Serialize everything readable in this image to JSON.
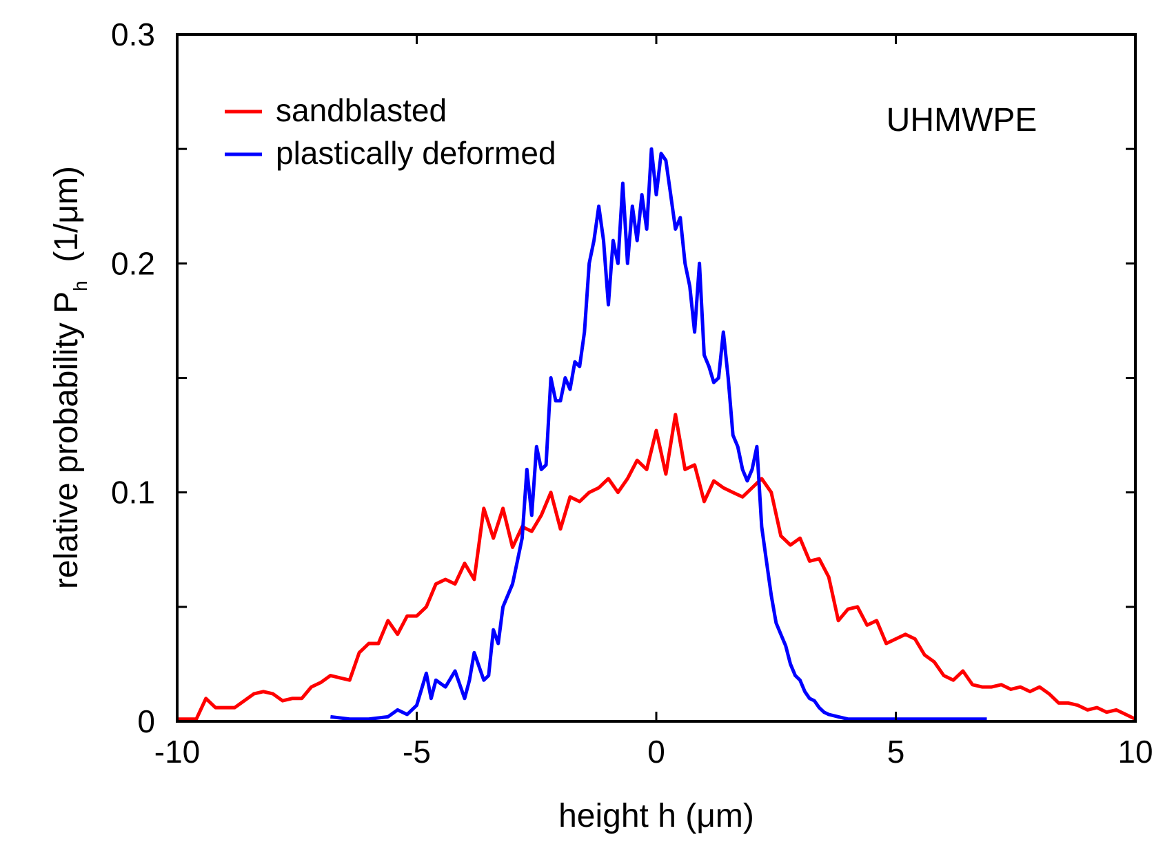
{
  "chart_data": {
    "type": "line",
    "title": "",
    "annotation": "UHMWPE",
    "xlabel": "height h  (μm)",
    "ylabel": {
      "prefix": "relative probability P",
      "subscript": "h",
      "suffix": "  (1/μm)"
    },
    "xlim": [
      -10,
      10
    ],
    "ylim": [
      0,
      0.3
    ],
    "xticks": [
      -10,
      -5,
      0,
      5,
      10
    ],
    "xtick_labels": [
      "-10",
      "-5",
      "0",
      "5",
      "10"
    ],
    "yticks": [
      0,
      0.1,
      0.2,
      0.3
    ],
    "ytick_labels": [
      "0",
      "0.1",
      "0.2",
      "0.3"
    ],
    "yminor_ticks": [
      0.05,
      0.15,
      0.25
    ],
    "grid": false,
    "legend_position": "top-left",
    "series": [
      {
        "name": "sandblasted",
        "color": "#ff0000",
        "x": [
          -10,
          -9.6,
          -9.4,
          -9.2,
          -9.0,
          -8.8,
          -8.6,
          -8.4,
          -8.2,
          -8.0,
          -7.8,
          -7.6,
          -7.4,
          -7.2,
          -7.0,
          -6.8,
          -6.6,
          -6.4,
          -6.2,
          -6.0,
          -5.8,
          -5.6,
          -5.4,
          -5.2,
          -5.0,
          -4.8,
          -4.6,
          -4.4,
          -4.2,
          -4.0,
          -3.8,
          -3.6,
          -3.4,
          -3.2,
          -3.0,
          -2.8,
          -2.6,
          -2.4,
          -2.2,
          -2.0,
          -1.8,
          -1.6,
          -1.4,
          -1.2,
          -1.0,
          -0.8,
          -0.6,
          -0.4,
          -0.2,
          0.0,
          0.2,
          0.4,
          0.6,
          0.8,
          1.0,
          1.2,
          1.4,
          1.6,
          1.8,
          2.0,
          2.2,
          2.4,
          2.6,
          2.8,
          3.0,
          3.2,
          3.4,
          3.6,
          3.8,
          4.0,
          4.2,
          4.4,
          4.6,
          4.8,
          5.0,
          5.2,
          5.4,
          5.6,
          5.8,
          6.0,
          6.2,
          6.4,
          6.6,
          6.8,
          7.0,
          7.2,
          7.4,
          7.6,
          7.8,
          8.0,
          8.2,
          8.4,
          8.6,
          8.8,
          9.0,
          9.2,
          9.4,
          9.6,
          9.8,
          10.0
        ],
        "values": [
          0.001,
          0.001,
          0.01,
          0.006,
          0.006,
          0.006,
          0.009,
          0.012,
          0.013,
          0.012,
          0.009,
          0.01,
          0.01,
          0.015,
          0.017,
          0.02,
          0.019,
          0.018,
          0.03,
          0.034,
          0.034,
          0.044,
          0.038,
          0.046,
          0.046,
          0.05,
          0.06,
          0.062,
          0.06,
          0.069,
          0.062,
          0.093,
          0.08,
          0.093,
          0.076,
          0.085,
          0.083,
          0.09,
          0.1,
          0.084,
          0.098,
          0.096,
          0.1,
          0.102,
          0.106,
          0.1,
          0.106,
          0.114,
          0.11,
          0.127,
          0.108,
          0.134,
          0.11,
          0.112,
          0.096,
          0.105,
          0.102,
          0.1,
          0.098,
          0.102,
          0.106,
          0.1,
          0.081,
          0.077,
          0.08,
          0.07,
          0.071,
          0.063,
          0.044,
          0.049,
          0.05,
          0.042,
          0.044,
          0.034,
          0.036,
          0.038,
          0.036,
          0.029,
          0.026,
          0.02,
          0.018,
          0.022,
          0.016,
          0.015,
          0.015,
          0.016,
          0.014,
          0.015,
          0.013,
          0.015,
          0.012,
          0.008,
          0.008,
          0.007,
          0.005,
          0.006,
          0.004,
          0.005,
          0.003,
          0.001
        ]
      },
      {
        "name": "plastically deformed",
        "color": "#0000ff",
        "x": [
          -6.8,
          -6.4,
          -6.0,
          -5.6,
          -5.4,
          -5.2,
          -5.0,
          -4.8,
          -4.7,
          -4.6,
          -4.4,
          -4.2,
          -4.0,
          -3.9,
          -3.8,
          -3.6,
          -3.5,
          -3.4,
          -3.3,
          -3.2,
          -3.0,
          -2.9,
          -2.8,
          -2.7,
          -2.6,
          -2.5,
          -2.4,
          -2.3,
          -2.2,
          -2.1,
          -2.0,
          -1.9,
          -1.8,
          -1.7,
          -1.6,
          -1.5,
          -1.4,
          -1.3,
          -1.2,
          -1.1,
          -1.0,
          -0.9,
          -0.8,
          -0.7,
          -0.6,
          -0.5,
          -0.4,
          -0.3,
          -0.2,
          -0.1,
          0.0,
          0.1,
          0.2,
          0.3,
          0.4,
          0.5,
          0.6,
          0.7,
          0.8,
          0.9,
          1.0,
          1.1,
          1.2,
          1.3,
          1.4,
          1.5,
          1.6,
          1.7,
          1.8,
          1.9,
          2.0,
          2.1,
          2.2,
          2.3,
          2.4,
          2.5,
          2.6,
          2.7,
          2.8,
          2.9,
          3.0,
          3.1,
          3.2,
          3.3,
          3.4,
          3.5,
          3.6,
          3.8,
          4.0,
          4.2,
          4.4,
          4.6,
          4.8,
          5.0,
          6.9
        ],
        "values": [
          0.002,
          0.001,
          0.001,
          0.002,
          0.005,
          0.003,
          0.007,
          0.021,
          0.01,
          0.018,
          0.015,
          0.022,
          0.01,
          0.018,
          0.03,
          0.018,
          0.02,
          0.04,
          0.034,
          0.05,
          0.06,
          0.07,
          0.08,
          0.11,
          0.09,
          0.12,
          0.11,
          0.112,
          0.15,
          0.14,
          0.14,
          0.15,
          0.145,
          0.157,
          0.155,
          0.17,
          0.2,
          0.21,
          0.225,
          0.21,
          0.182,
          0.21,
          0.2,
          0.235,
          0.2,
          0.225,
          0.21,
          0.23,
          0.215,
          0.25,
          0.23,
          0.248,
          0.245,
          0.23,
          0.215,
          0.22,
          0.2,
          0.19,
          0.17,
          0.2,
          0.16,
          0.155,
          0.148,
          0.15,
          0.17,
          0.15,
          0.125,
          0.12,
          0.11,
          0.105,
          0.11,
          0.12,
          0.085,
          0.07,
          0.055,
          0.043,
          0.038,
          0.033,
          0.025,
          0.02,
          0.018,
          0.013,
          0.01,
          0.009,
          0.006,
          0.004,
          0.003,
          0.002,
          0.001,
          0.001,
          0.001,
          0.001,
          0.001,
          0.001,
          0.001
        ]
      }
    ]
  }
}
